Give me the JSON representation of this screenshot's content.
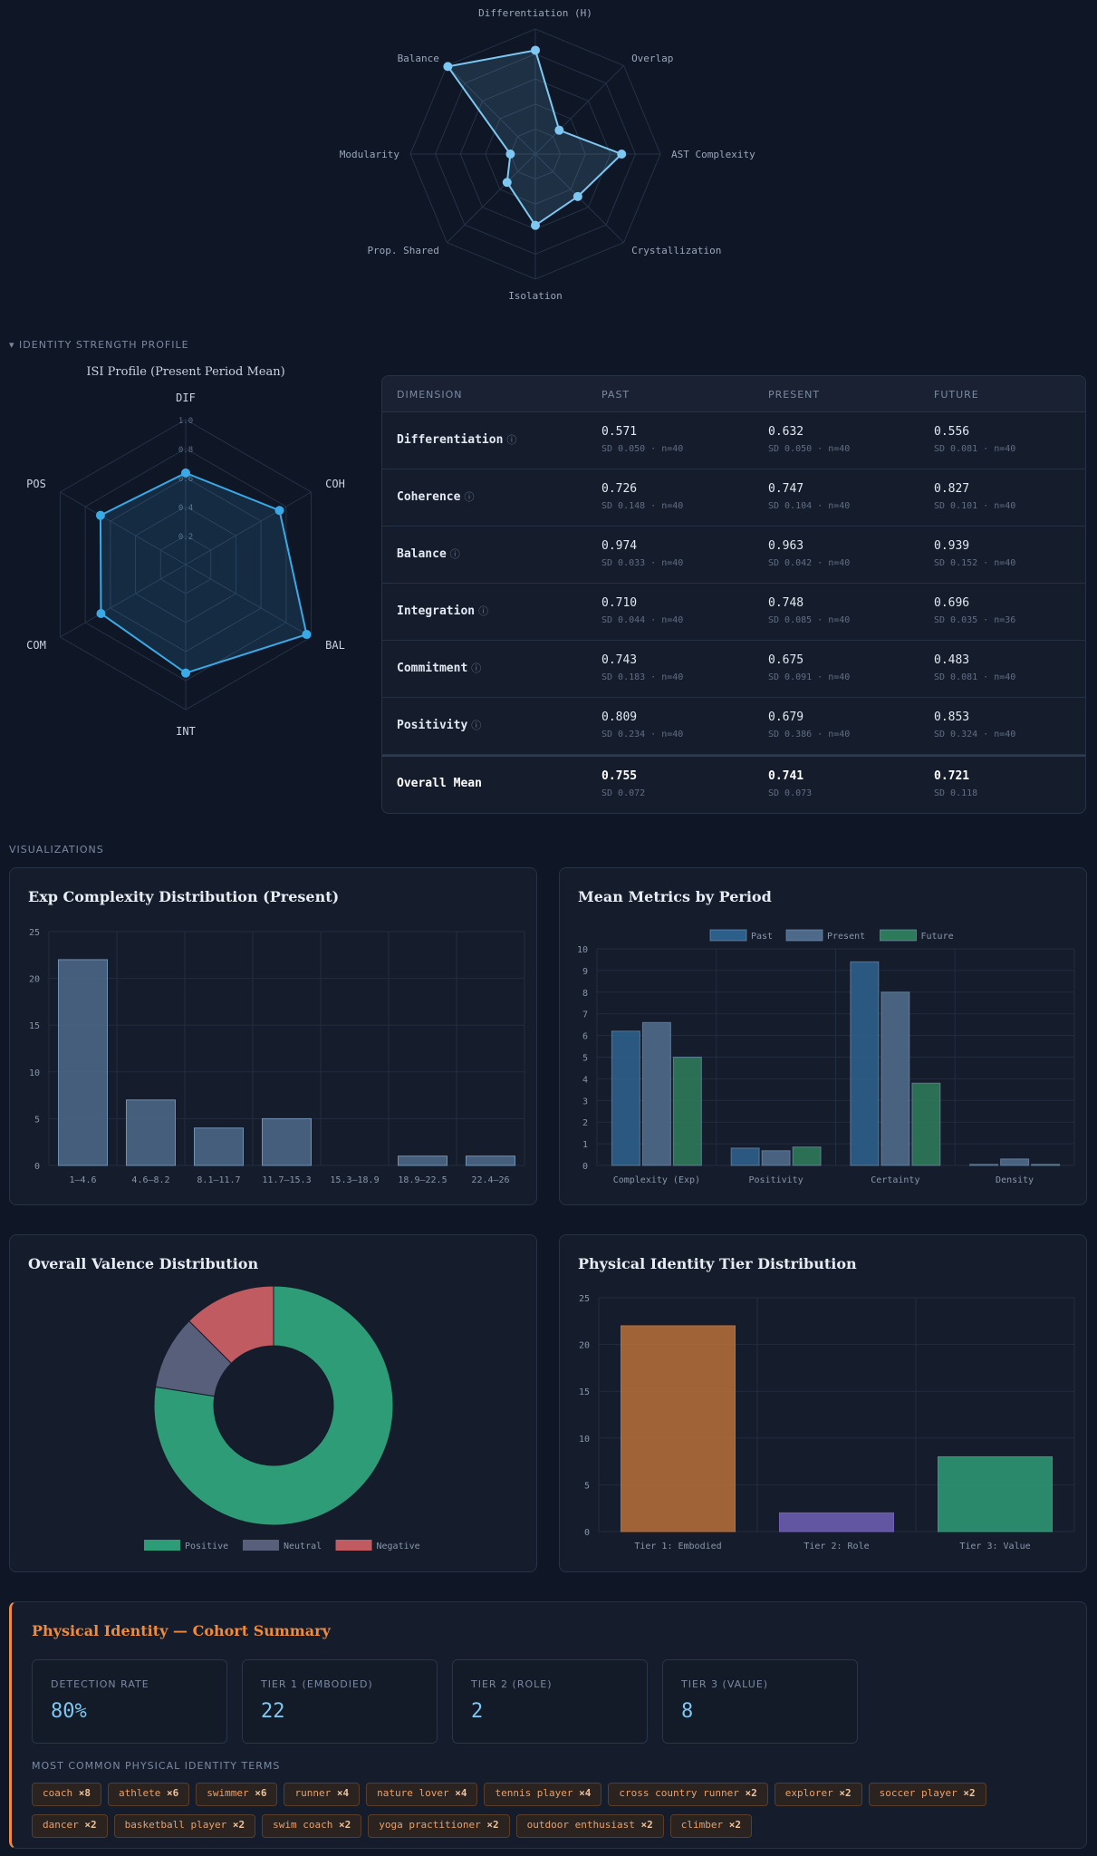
{
  "radar_top": {
    "axes": [
      "Differentiation (H)",
      "Overlap",
      "AST Complexity",
      "Crystallization",
      "Isolation",
      "Prop. Shared",
      "Modularity",
      "Balance"
    ],
    "values": [
      0.83,
      0.27,
      0.69,
      0.48,
      0.57,
      0.32,
      0.2,
      0.99
    ],
    "max": 1.0,
    "color": "#7cc8f2"
  },
  "isi_section": {
    "label": "IDENTITY STRENGTH PROFILE",
    "radar_title": "ISI Profile (Present Period Mean)",
    "axes": [
      "DIF",
      "COH",
      "BAL",
      "INT",
      "COM",
      "POS"
    ],
    "values": [
      0.632,
      0.747,
      0.963,
      0.748,
      0.675,
      0.679
    ],
    "ticks": [
      "0.2",
      "0.4",
      "0.6",
      "0.8",
      "1.0"
    ],
    "color": "#3aa9e6"
  },
  "isi_table": {
    "headers": [
      "DIMENSION",
      "PAST",
      "PRESENT",
      "FUTURE"
    ],
    "info_icon": "ⓘ",
    "rows": [
      {
        "dim": "Differentiation",
        "past": "0.571",
        "past_sd": "SD 0.050 · n=40",
        "present": "0.632",
        "present_sd": "SD 0.050 · n=40",
        "future": "0.556",
        "future_sd": "SD 0.081 · n=40"
      },
      {
        "dim": "Coherence",
        "past": "0.726",
        "past_sd": "SD 0.148 · n=40",
        "present": "0.747",
        "present_sd": "SD 0.104 · n=40",
        "future": "0.827",
        "future_sd": "SD 0.101 · n=40"
      },
      {
        "dim": "Balance",
        "past": "0.974",
        "past_sd": "SD 0.033 · n=40",
        "present": "0.963",
        "present_sd": "SD 0.042 · n=40",
        "future": "0.939",
        "future_sd": "SD 0.152 · n=40"
      },
      {
        "dim": "Integration",
        "past": "0.710",
        "past_sd": "SD 0.044 · n=40",
        "present": "0.748",
        "present_sd": "SD 0.085 · n=40",
        "future": "0.696",
        "future_sd": "SD 0.035 · n=36"
      },
      {
        "dim": "Commitment",
        "past": "0.743",
        "past_sd": "SD 0.183 · n=40",
        "present": "0.675",
        "present_sd": "SD 0.091 · n=40",
        "future": "0.483",
        "future_sd": "SD 0.081 · n=40"
      },
      {
        "dim": "Positivity",
        "past": "0.809",
        "past_sd": "SD 0.234 · n=40",
        "present": "0.679",
        "present_sd": "SD 0.386 · n=40",
        "future": "0.853",
        "future_sd": "SD 0.324 · n=40"
      }
    ],
    "overall": {
      "dim": "Overall Mean",
      "past": "0.755",
      "past_sd": "SD 0.072",
      "present": "0.741",
      "present_sd": "SD 0.073",
      "future": "0.721",
      "future_sd": "SD 0.118"
    }
  },
  "visualizations_label": "VISUALIZATIONS",
  "charts": {
    "complexity": {
      "title": "Exp Complexity Distribution (Present)",
      "type": "bar",
      "categories": [
        "1–4.6",
        "4.6–8.2",
        "8.1–11.7",
        "11.7–15.3",
        "15.3–18.9",
        "18.9–22.5",
        "22.4–26"
      ],
      "values": [
        22,
        7,
        4,
        5,
        0,
        1,
        1
      ],
      "ylim": [
        0,
        25
      ],
      "yticks": [
        "0",
        "5",
        "10",
        "15",
        "20",
        "25"
      ],
      "color": "#4e6a8a"
    },
    "metrics": {
      "title": "Mean Metrics by Period",
      "type": "bar",
      "categories": [
        "Complexity (Exp)",
        "Positivity",
        "Certainty",
        "Density"
      ],
      "series": [
        {
          "name": "Past",
          "values": [
            6.2,
            0.8,
            9.4,
            0.05
          ],
          "color": "#2c5f8a"
        },
        {
          "name": "Present",
          "values": [
            6.6,
            0.68,
            8.0,
            0.3
          ],
          "color": "#4e6a8a"
        },
        {
          "name": "Future",
          "values": [
            5.0,
            0.85,
            3.8,
            0.05
          ],
          "color": "#2d7a5a"
        }
      ],
      "ylim": [
        0,
        10
      ],
      "yticks": [
        "0",
        "1",
        "2",
        "3",
        "4",
        "5",
        "6",
        "7",
        "8",
        "9",
        "10"
      ]
    },
    "valence": {
      "title": "Overall Valence Distribution",
      "type": "pie",
      "labels": [
        "Positive",
        "Neutral",
        "Negative"
      ],
      "values": [
        31,
        4,
        5
      ],
      "colors": [
        "#2e9c76",
        "#575f7a",
        "#c05b62"
      ]
    },
    "tiers": {
      "title": "Physical Identity Tier Distribution",
      "type": "bar",
      "categories": [
        "Tier 1: Embodied",
        "Tier 2: Role",
        "Tier 3: Value"
      ],
      "values": [
        22,
        2,
        8
      ],
      "colors": [
        "#b86f3a",
        "#7060b8",
        "#2e9c76"
      ],
      "ylim": [
        0,
        25
      ],
      "yticks": [
        "0",
        "5",
        "10",
        "15",
        "20",
        "25"
      ]
    }
  },
  "chart_data": [
    {
      "type": "bar",
      "title": "Exp Complexity Distribution (Present)",
      "categories": [
        "1–4.6",
        "4.6–8.2",
        "8.1–11.7",
        "11.7–15.3",
        "15.3–18.9",
        "18.9–22.5",
        "22.4–26"
      ],
      "values": [
        22,
        7,
        4,
        5,
        0,
        1,
        1
      ],
      "ylim": [
        0,
        25
      ]
    },
    {
      "type": "bar",
      "title": "Mean Metrics by Period",
      "categories": [
        "Complexity (Exp)",
        "Positivity",
        "Certainty",
        "Density"
      ],
      "series": [
        {
          "name": "Past",
          "values": [
            6.2,
            0.8,
            9.4,
            0.05
          ]
        },
        {
          "name": "Present",
          "values": [
            6.6,
            0.68,
            8.0,
            0.3
          ]
        },
        {
          "name": "Future",
          "values": [
            5.0,
            0.85,
            3.8,
            0.05
          ]
        }
      ],
      "ylim": [
        0,
        10
      ],
      "legend": "top"
    },
    {
      "type": "pie",
      "title": "Overall Valence Distribution",
      "labels": [
        "Positive",
        "Neutral",
        "Negative"
      ],
      "values": [
        31,
        4,
        5
      ],
      "legend": "bottom"
    },
    {
      "type": "bar",
      "title": "Physical Identity Tier Distribution",
      "categories": [
        "Tier 1: Embodied",
        "Tier 2: Role",
        "Tier 3: Value"
      ],
      "values": [
        22,
        2,
        8
      ],
      "ylim": [
        0,
        25
      ]
    }
  ],
  "summary": {
    "title": "Physical Identity — Cohort Summary",
    "stats": [
      {
        "label": "DETECTION RATE",
        "value": "80%"
      },
      {
        "label": "TIER 1 (EMBODIED)",
        "value": "22"
      },
      {
        "label": "TIER 2 (ROLE)",
        "value": "2"
      },
      {
        "label": "TIER 3 (VALUE)",
        "value": "8"
      }
    ],
    "terms_label": "MOST COMMON PHYSICAL IDENTITY TERMS",
    "terms": [
      {
        "term": "coach",
        "count": "×8"
      },
      {
        "term": "athlete",
        "count": "×6"
      },
      {
        "term": "swimmer",
        "count": "×6"
      },
      {
        "term": "runner",
        "count": "×4"
      },
      {
        "term": "nature lover",
        "count": "×4"
      },
      {
        "term": "tennis player",
        "count": "×4"
      },
      {
        "term": "cross country runner",
        "count": "×2"
      },
      {
        "term": "explorer",
        "count": "×2"
      },
      {
        "term": "soccer player",
        "count": "×2"
      },
      {
        "term": "dancer",
        "count": "×2"
      },
      {
        "term": "basketball player",
        "count": "×2"
      },
      {
        "term": "swim coach",
        "count": "×2"
      },
      {
        "term": "yoga practitioner",
        "count": "×2"
      },
      {
        "term": "outdoor enthusiast",
        "count": "×2"
      },
      {
        "term": "climber",
        "count": "×2"
      }
    ],
    "accent": "#f08a3c"
  }
}
